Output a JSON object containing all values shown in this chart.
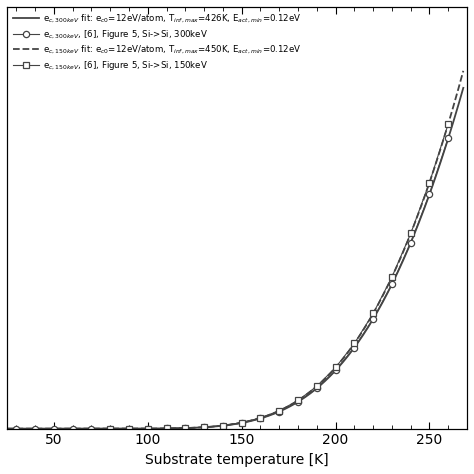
{
  "title": "",
  "xlabel": "Substrate temperature [K]",
  "ylabel": "",
  "xlim": [
    25,
    270
  ],
  "xticks": [
    50.0,
    100.0,
    150.0,
    200.0,
    250.0
  ],
  "background_color": "#ffffff",
  "fit_300keV": {
    "ec0": 12.0,
    "T_inf_max": 426.0,
    "E_act_min": 0.12,
    "color": "#444444",
    "linestyle": "-",
    "linewidth": 1.3
  },
  "fit_150keV": {
    "ec0": 12.0,
    "T_inf_max": 450.0,
    "E_act_min": 0.12,
    "color": "#444444",
    "linestyle": "--",
    "linewidth": 1.3
  },
  "data_300keV_x": [
    30,
    40,
    50,
    60,
    70,
    80,
    90,
    100,
    110,
    120,
    130,
    140,
    150,
    160,
    170,
    180,
    190,
    200,
    210,
    220,
    230,
    240,
    250,
    260
  ],
  "data_150keV_x": [
    80,
    90,
    100,
    110,
    120,
    130,
    140,
    150,
    160,
    170,
    180,
    190,
    200,
    210,
    220,
    230,
    240,
    250,
    260
  ],
  "marker_300keV": "o",
  "marker_150keV": "s",
  "marker_color": "#444444",
  "marker_size": 4.5,
  "kB": 8.617e-05,
  "legend_loc": "upper left",
  "l1_label": "e$_{c,300keV}$ fit: e$_{c0}$=12eV/atom, T$_{inf,max}$=426K, E$_{act,min}$=0.12eV",
  "l2_label": "e$_{c,300keV}$, [6], Figure 5, Si->Si, 300keV",
  "l3_label": "e$_{c,150keV}$ fit: e$_{c0}$=12eV/atom, T$_{inf,max}$=450K, E$_{act,min}$=0.12eV",
  "l4_label": "e$_{c,150keV}$, [6], Figure 5, Si->Si, 150keV"
}
